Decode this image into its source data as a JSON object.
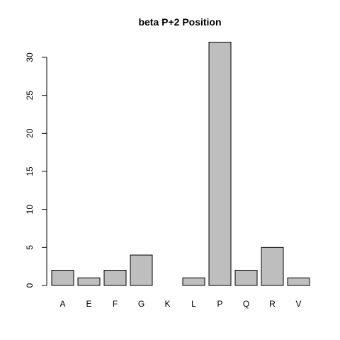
{
  "chart_data": {
    "type": "bar",
    "title": "beta P+2 Position",
    "xlabel": "",
    "ylabel": "",
    "categories": [
      "A",
      "E",
      "F",
      "G",
      "K",
      "L",
      "P",
      "Q",
      "R",
      "V"
    ],
    "values": [
      2,
      1,
      2,
      4,
      0,
      1,
      32,
      2,
      5,
      1
    ],
    "ylim": [
      0,
      32
    ],
    "yticks": [
      0,
      5,
      10,
      15,
      20,
      25,
      30
    ],
    "grid": false,
    "legend": "none",
    "colors": {
      "bar_fill": "#bebebe",
      "bar_stroke": "#000000",
      "axis": "#000000",
      "background": "#ffffff"
    }
  }
}
